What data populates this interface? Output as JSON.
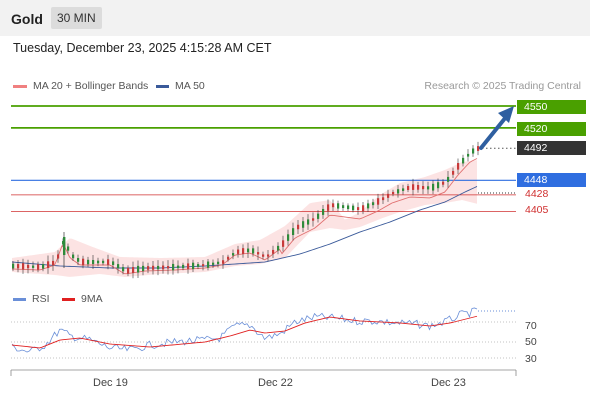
{
  "header": {
    "title": "Gold",
    "timeframe": "30 MIN"
  },
  "timestamp": "Tuesday, December 23, 2025 4:15:28 AM CET",
  "credit": "Research © 2025 Trading Central",
  "legend": {
    "ma20": {
      "label": "MA 20 + Bollinger Bands",
      "color": "#f08080"
    },
    "ma50": {
      "label": "MA 50",
      "color": "#3a5a9a"
    }
  },
  "rsi_legend": {
    "rsi": {
      "label": "RSI",
      "color": "#6a8fd8"
    },
    "ma": {
      "label": "9MA",
      "color": "#e02020"
    }
  },
  "levels": [
    {
      "value": 4550,
      "label": "4550",
      "kind": "target",
      "color": "#4aa000"
    },
    {
      "value": 4520,
      "label": "4520",
      "kind": "target",
      "color": "#4aa000"
    },
    {
      "value": 4492,
      "label": "4492",
      "kind": "last",
      "color": "#333333"
    },
    {
      "value": 4448,
      "label": "4448",
      "kind": "pivot",
      "color": "#2f6ee0"
    },
    {
      "value": 4428,
      "label": "4428",
      "kind": "support",
      "color": "#d03030"
    },
    {
      "value": 4405,
      "label": "4405",
      "kind": "support",
      "color": "#d03030"
    }
  ],
  "rsi_levels": [
    "70",
    "50",
    "30"
  ],
  "x_labels": [
    "Dec 19",
    "Dec 22",
    "Dec 23"
  ],
  "chart_data": {
    "type": "line",
    "title": "Gold",
    "timeframe": "30 MIN",
    "x": [
      "Dec 19",
      "Dec 22",
      "Dec 23"
    ],
    "price_levels": [
      4550,
      4520,
      4492,
      4448,
      4428,
      4405
    ],
    "last_price": 4492,
    "pivot": 4448,
    "targets": [
      4520,
      4550
    ],
    "supports": [
      4428,
      4405
    ],
    "series": [
      {
        "name": "MA 20 + Bollinger Bands"
      },
      {
        "name": "MA 50"
      },
      {
        "name": "RSI"
      },
      {
        "name": "9MA"
      }
    ],
    "rsi_ticks": [
      70,
      50,
      30
    ],
    "arrow": "up"
  }
}
